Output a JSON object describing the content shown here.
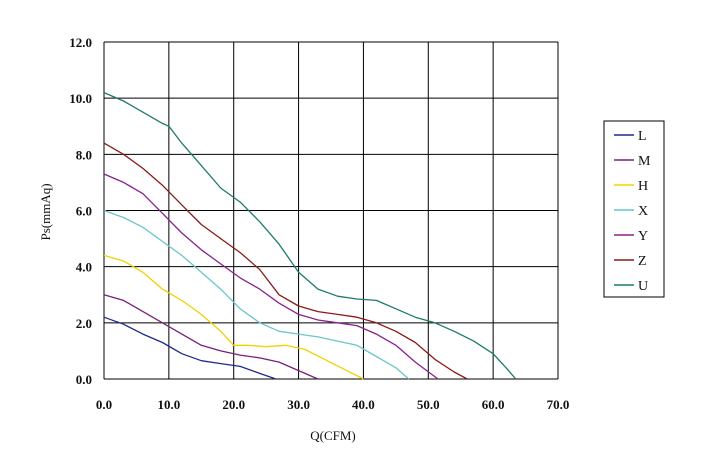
{
  "chart_data": {
    "type": "line",
    "title": "",
    "xlabel": "Q(CFM)",
    "ylabel": "Ps(mmAq)",
    "xlim": [
      0,
      70
    ],
    "ylim": [
      0,
      12
    ],
    "xticks": [
      "0.0",
      "10.0",
      "20.0",
      "30.0",
      "40.0",
      "50.0",
      "60.0",
      "70.0"
    ],
    "yticks": [
      "0.0",
      "2.0",
      "4.0",
      "6.0",
      "8.0",
      "10.0",
      "12.0"
    ],
    "grid": true,
    "legend_position": "right",
    "series": [
      {
        "name": "L",
        "color": "#1f2a8c",
        "x": [
          0,
          3,
          6,
          9,
          12,
          15,
          18,
          21,
          24,
          26.5
        ],
        "y": [
          2.2,
          1.95,
          1.6,
          1.3,
          0.9,
          0.65,
          0.55,
          0.45,
          0.2,
          0.0
        ]
      },
      {
        "name": "M",
        "color": "#7a1f7a",
        "x": [
          0,
          3,
          6,
          9,
          12,
          15,
          18,
          21,
          24,
          27,
          30,
          33
        ],
        "y": [
          3.0,
          2.8,
          2.4,
          2.0,
          1.6,
          1.2,
          1.0,
          0.85,
          0.75,
          0.6,
          0.3,
          0.0
        ]
      },
      {
        "name": "H",
        "color": "#f2d100",
        "x": [
          0,
          3,
          6,
          9,
          12,
          15,
          18,
          20,
          22,
          25,
          28,
          31,
          34,
          37,
          40
        ],
        "y": [
          4.4,
          4.2,
          3.8,
          3.2,
          2.8,
          2.3,
          1.7,
          1.2,
          1.2,
          1.15,
          1.2,
          1.05,
          0.7,
          0.35,
          0.0
        ]
      },
      {
        "name": "X",
        "color": "#6cc5c8",
        "x": [
          0,
          3,
          6,
          9,
          12,
          15,
          18,
          21,
          24,
          27,
          30,
          33,
          36,
          39,
          42,
          45,
          47
        ],
        "y": [
          6.0,
          5.75,
          5.4,
          4.9,
          4.4,
          3.8,
          3.2,
          2.5,
          2.0,
          1.7,
          1.6,
          1.5,
          1.35,
          1.2,
          0.8,
          0.4,
          0.0
        ]
      },
      {
        "name": "Y",
        "color": "#8a2090",
        "x": [
          0,
          3,
          6,
          9,
          12,
          15,
          18,
          21,
          24,
          27,
          30,
          33,
          36,
          39,
          42,
          45,
          48,
          51.5
        ],
        "y": [
          7.3,
          7.0,
          6.6,
          5.9,
          5.2,
          4.6,
          4.1,
          3.6,
          3.2,
          2.7,
          2.3,
          2.1,
          2.0,
          1.9,
          1.6,
          1.2,
          0.6,
          0.0
        ]
      },
      {
        "name": "Z",
        "color": "#8b1a1a",
        "x": [
          0,
          3,
          6,
          9,
          12,
          15,
          18,
          21,
          24,
          27,
          30,
          33,
          36,
          39,
          42,
          45,
          48,
          51,
          54,
          56
        ],
        "y": [
          8.4,
          8.0,
          7.5,
          6.9,
          6.2,
          5.5,
          5.0,
          4.5,
          3.9,
          3.0,
          2.6,
          2.4,
          2.3,
          2.2,
          2.0,
          1.7,
          1.3,
          0.7,
          0.25,
          0.0
        ]
      },
      {
        "name": "U",
        "color": "#1f7a6a",
        "x": [
          0,
          3,
          6,
          9,
          10,
          12,
          15,
          18,
          21,
          24,
          27,
          30,
          33,
          36,
          39,
          42,
          45,
          48,
          51,
          54,
          57,
          60,
          62,
          63.5
        ],
        "y": [
          10.2,
          9.9,
          9.5,
          9.1,
          9.0,
          8.4,
          7.6,
          6.8,
          6.3,
          5.6,
          4.8,
          3.8,
          3.2,
          2.95,
          2.85,
          2.8,
          2.5,
          2.2,
          2.0,
          1.7,
          1.35,
          0.9,
          0.4,
          0.0
        ]
      }
    ]
  }
}
